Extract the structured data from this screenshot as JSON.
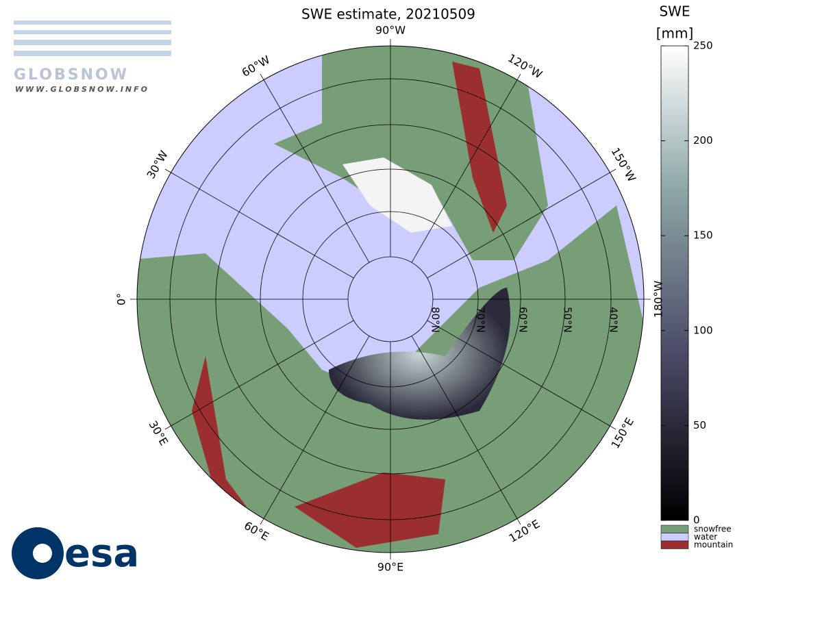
{
  "title": "SWE estimate, 20210509",
  "meridian_labels": [
    "0°",
    "30°E",
    "60°E",
    "90°E",
    "120°E",
    "150°E",
    "180°W",
    "150°W",
    "120°W",
    "90°W",
    "60°W",
    "30°W"
  ],
  "latitude_labels": [
    "80°N",
    "70°N",
    "60°N",
    "50°N",
    "40°N"
  ],
  "colorbar": {
    "title": "SWE",
    "unit": "[mm]",
    "range": [
      0,
      250
    ],
    "ticks": [
      0,
      50,
      100,
      150,
      200,
      250
    ]
  },
  "legend": [
    {
      "label": "snowfree",
      "color": "#779e77"
    },
    {
      "label": "water",
      "color": "#ccccff"
    },
    {
      "label": "mountain",
      "color": "#9b2f2f"
    }
  ],
  "logos": {
    "globsnow": "GLOBSNOW",
    "globsnow_url": "WWW.GLOBSNOW.INFO",
    "esa": "esa"
  }
}
